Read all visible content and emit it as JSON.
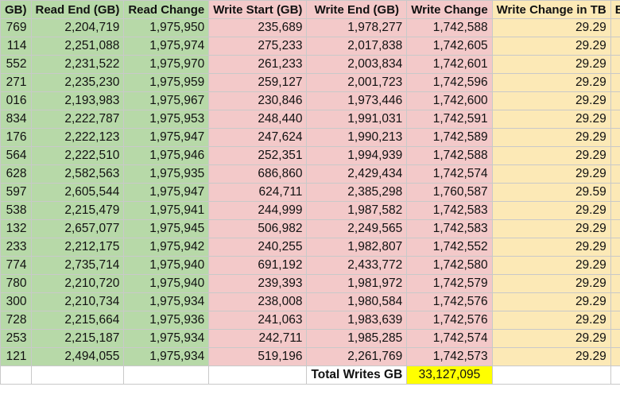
{
  "headers": [
    {
      "text": "GB)",
      "cls": "g"
    },
    {
      "text": "Read End (GB)",
      "cls": "g"
    },
    {
      "text": "Read Change",
      "cls": "g"
    },
    {
      "text": "Write Start (GB)",
      "cls": "p"
    },
    {
      "text": "Write End (GB)",
      "cls": "p"
    },
    {
      "text": "Write Change",
      "cls": "p"
    },
    {
      "text": "Write Change in TB",
      "cls": "y"
    },
    {
      "text": "Extrap",
      "cls": "y"
    }
  ],
  "rows": [
    [
      "769",
      "2,204,719",
      "1,975,950",
      "235,689",
      "1,978,277",
      "1,742,588",
      "29.29",
      ""
    ],
    [
      "114",
      "2,251,088",
      "1,975,974",
      "275,233",
      "2,017,838",
      "1,742,605",
      "29.29",
      ""
    ],
    [
      "552",
      "2,231,522",
      "1,975,970",
      "261,233",
      "2,003,834",
      "1,742,601",
      "29.29",
      ""
    ],
    [
      "271",
      "2,235,230",
      "1,975,959",
      "259,127",
      "2,001,723",
      "1,742,596",
      "29.29",
      ""
    ],
    [
      "016",
      "2,193,983",
      "1,975,967",
      "230,846",
      "1,973,446",
      "1,742,600",
      "29.29",
      ""
    ],
    [
      "834",
      "2,222,787",
      "1,975,953",
      "248,440",
      "1,991,031",
      "1,742,591",
      "29.29",
      ""
    ],
    [
      "176",
      "2,222,123",
      "1,975,947",
      "247,624",
      "1,990,213",
      "1,742,589",
      "29.29",
      ""
    ],
    [
      "564",
      "2,222,510",
      "1,975,946",
      "252,351",
      "1,994,939",
      "1,742,588",
      "29.29",
      ""
    ],
    [
      "628",
      "2,582,563",
      "1,975,935",
      "686,860",
      "2,429,434",
      "1,742,574",
      "29.29",
      ""
    ],
    [
      "597",
      "2,605,544",
      "1,975,947",
      "624,711",
      "2,385,298",
      "1,760,587",
      "29.59",
      ""
    ],
    [
      "538",
      "2,215,479",
      "1,975,941",
      "244,999",
      "1,987,582",
      "1,742,583",
      "29.29",
      ""
    ],
    [
      "132",
      "2,657,077",
      "1,975,945",
      "506,982",
      "2,249,565",
      "1,742,583",
      "29.29",
      ""
    ],
    [
      "233",
      "2,212,175",
      "1,975,942",
      "240,255",
      "1,982,807",
      "1,742,552",
      "29.29",
      ""
    ],
    [
      "774",
      "2,735,714",
      "1,975,940",
      "691,192",
      "2,433,772",
      "1,742,580",
      "29.29",
      ""
    ],
    [
      "780",
      "2,210,720",
      "1,975,940",
      "239,393",
      "1,981,972",
      "1,742,579",
      "29.29",
      ""
    ],
    [
      "300",
      "2,210,734",
      "1,975,934",
      "238,008",
      "1,980,584",
      "1,742,576",
      "29.29",
      ""
    ],
    [
      "728",
      "2,215,664",
      "1,975,936",
      "241,063",
      "1,983,639",
      "1,742,576",
      "29.29",
      ""
    ],
    [
      "253",
      "2,215,187",
      "1,975,934",
      "242,711",
      "1,985,285",
      "1,742,574",
      "29.29",
      ""
    ],
    [
      "121",
      "2,494,055",
      "1,975,934",
      "519,196",
      "2,261,769",
      "1,742,573",
      "29.29",
      ""
    ]
  ],
  "col_classes": [
    "g",
    "g",
    "g",
    "p",
    "p",
    "p",
    "y",
    "y"
  ],
  "total": {
    "label": "Total Writes GB",
    "value": "33,127,095"
  },
  "colors": {
    "read_green": "#b7d9a8",
    "write_pink": "#f3c9c9",
    "tb_yellow": "#fce9b6",
    "highlight": "#ffff00"
  }
}
